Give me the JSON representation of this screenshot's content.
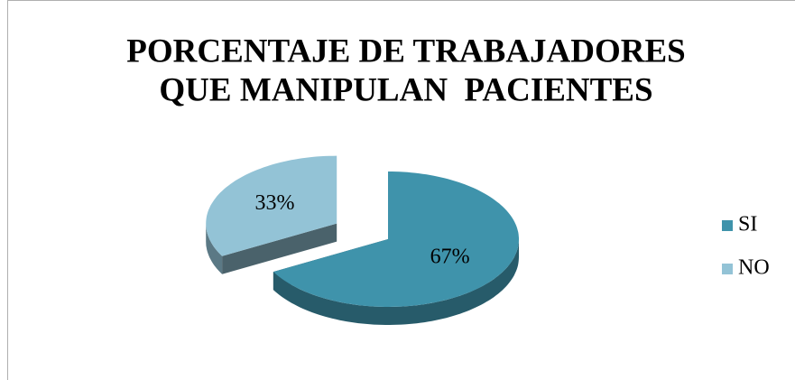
{
  "chart_data": {
    "type": "pie",
    "title": [
      "PORCENTAJE DE TRABAJADORES",
      "QUE MANIPULAN  PACIENTES"
    ],
    "categories": [
      "SI",
      "NO"
    ],
    "values": [
      67,
      33
    ],
    "value_labels": [
      "67%",
      "33%"
    ],
    "colors": [
      "#3f93ab",
      "#93c3d6"
    ],
    "legend": "right"
  }
}
